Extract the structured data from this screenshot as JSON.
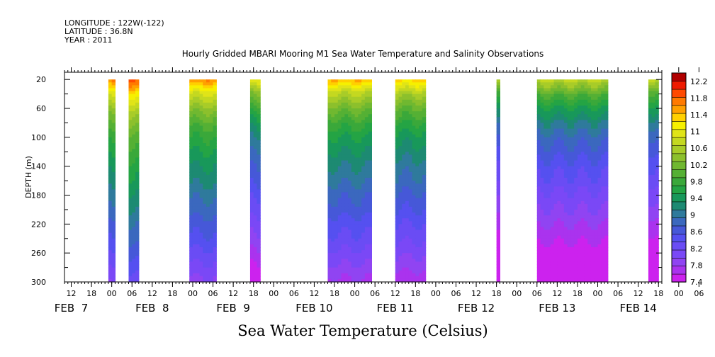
{
  "header": {
    "longitude": "LONGITUDE : 122W(-122)",
    "latitude": "LATITUDE : 36.8N",
    "year": "YEAR : 2011"
  },
  "chart_data": {
    "type": "heatmap",
    "title": "Hourly Gridded MBARI Mooring M1 Sea Water Temperature and Salinity Observations",
    "ylabel": "DEPTH (m)",
    "xlabel": "Sea Water Temperature (Celsius)",
    "x_start": "2011-02-07T10:00",
    "x_end": "2011-02-14T19:00",
    "x_hour_ticks": [
      "12",
      "18",
      "00",
      "06",
      "12",
      "18",
      "00",
      "06",
      "12",
      "18",
      "00",
      "06",
      "12",
      "18",
      "00",
      "06",
      "12",
      "18",
      "00",
      "06",
      "12",
      "18",
      "00",
      "06",
      "12",
      "18",
      "00",
      "06",
      "12",
      "18",
      "00",
      "06"
    ],
    "x_hour_tick_times": [
      "2011-02-07T12:00",
      "2011-02-07T18:00",
      "2011-02-08T00:00",
      "2011-02-08T06:00",
      "2011-02-08T12:00",
      "2011-02-08T18:00",
      "2011-02-09T00:00",
      "2011-02-09T06:00",
      "2011-02-09T12:00",
      "2011-02-09T18:00",
      "2011-02-10T00:00",
      "2011-02-10T06:00",
      "2011-02-10T12:00",
      "2011-02-10T18:00",
      "2011-02-11T00:00",
      "2011-02-11T06:00",
      "2011-02-11T12:00",
      "2011-02-11T18:00",
      "2011-02-12T00:00",
      "2011-02-12T06:00",
      "2011-02-12T12:00",
      "2011-02-12T18:00",
      "2011-02-13T00:00",
      "2011-02-13T06:00",
      "2011-02-13T12:00",
      "2011-02-13T18:00",
      "2011-02-14T00:00",
      "2011-02-14T06:00",
      "2011-02-14T12:00",
      "2011-02-14T18:00",
      "2011-02-15T00:00",
      "2011-02-15T06:00"
    ],
    "date_labels": [
      {
        "label": "FEB  7",
        "time": "2011-02-07T12:00"
      },
      {
        "label": "FEB  8",
        "time": "2011-02-08T12:00"
      },
      {
        "label": "FEB  9",
        "time": "2011-02-09T12:00"
      },
      {
        "label": "FEB 10",
        "time": "2011-02-10T12:00"
      },
      {
        "label": "FEB 11",
        "time": "2011-02-11T12:00"
      },
      {
        "label": "FEB 12",
        "time": "2011-02-12T12:00"
      },
      {
        "label": "FEB 13",
        "time": "2011-02-13T12:00"
      },
      {
        "label": "FEB 14",
        "time": "2011-02-14T12:00"
      }
    ],
    "y_ticks": [
      20,
      60,
      100,
      140,
      180,
      220,
      260,
      300
    ],
    "ylim": [
      10,
      300
    ],
    "y_reversed": true,
    "depth_range": [
      20,
      300
    ],
    "colorbar": {
      "levels": [
        7.4,
        7.6,
        7.8,
        8.0,
        8.2,
        8.4,
        8.6,
        8.8,
        9.0,
        9.2,
        9.4,
        9.6,
        9.8,
        10.0,
        10.2,
        10.4,
        10.6,
        10.8,
        11.0,
        11.2,
        11.4,
        11.6,
        11.8,
        12.0,
        12.2,
        12.4
      ],
      "tick_labels": [
        "7.4",
        "7.8",
        "8.2",
        "8.6",
        "9",
        "9.4",
        "9.8",
        "10.2",
        "10.6",
        "11",
        "11.4",
        "11.8",
        "12.2"
      ],
      "colors": [
        "#cc22ee",
        "#aa33ee",
        "#9044f2",
        "#7a48f6",
        "#6a4cf4",
        "#5550f0",
        "#4658d8",
        "#3b68be",
        "#2f7a9c",
        "#1d8a72",
        "#18985a",
        "#24a444",
        "#3aa83a",
        "#55b034",
        "#70b830",
        "#8cc02c",
        "#a8cc28",
        "#c4d820",
        "#e0e418",
        "#f6f000",
        "#ffd000",
        "#ffa000",
        "#ff7a00",
        "#ff4a00",
        "#ee1a00",
        "#b00000"
      ]
    },
    "segments": [
      {
        "start": "2011-02-07T23:00",
        "end": "2011-02-08T01:00",
        "sst": 11.8
      },
      {
        "start": "2011-02-08T05:00",
        "end": "2011-02-08T08:00",
        "sst": 12.1
      },
      {
        "start": "2011-02-08T23:00",
        "end": "2011-02-09T07:00",
        "sst": 11.8
      },
      {
        "start": "2011-02-09T17:00",
        "end": "2011-02-09T20:00",
        "sst": 11.2
      },
      {
        "start": "2011-02-10T16:00",
        "end": "2011-02-11T05:00",
        "sst": 11.6
      },
      {
        "start": "2011-02-11T12:00",
        "end": "2011-02-11T21:00",
        "sst": 11.5
      },
      {
        "start": "2011-02-12T18:00",
        "end": "2011-02-12T19:00",
        "sst": 10.8
      },
      {
        "start": "2011-02-13T06:00",
        "end": "2011-02-14T03:00",
        "sst": 10.9
      },
      {
        "start": "2011-02-14T15:00",
        "end": "2011-02-14T18:00",
        "sst": 10.8
      }
    ],
    "profile": [
      {
        "depth": 20,
        "offset": 0.0
      },
      {
        "depth": 40,
        "offset": -0.8
      },
      {
        "depth": 60,
        "offset": -1.3
      },
      {
        "depth": 80,
        "offset": -1.7
      },
      {
        "depth": 100,
        "offset": -2.0
      },
      {
        "depth": 120,
        "offset": -2.2
      },
      {
        "depth": 140,
        "offset": -2.4
      },
      {
        "depth": 160,
        "offset": -2.55
      },
      {
        "depth": 180,
        "offset": -2.75
      },
      {
        "depth": 200,
        "offset": -2.9
      },
      {
        "depth": 220,
        "offset": -3.1
      },
      {
        "depth": 240,
        "offset": -3.25
      },
      {
        "depth": 260,
        "offset": -3.45
      },
      {
        "depth": 280,
        "offset": -3.65
      },
      {
        "depth": 300,
        "offset": -3.85
      }
    ]
  }
}
